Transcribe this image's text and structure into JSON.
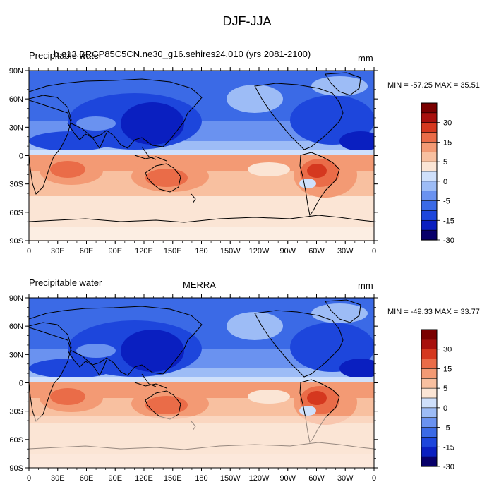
{
  "figure": {
    "title": "DJF-JJA"
  },
  "legend": {
    "colors": [
      "#08006a",
      "#0a1fc0",
      "#1d46dc",
      "#3b6ae6",
      "#6a92f0",
      "#9dbcf6",
      "#cfe0fb",
      "#fbe5d5",
      "#f8c0a0",
      "#f39a74",
      "#ea6c48",
      "#d5381f",
      "#a8100d",
      "#7a0000"
    ],
    "tick_labels": [
      "30",
      "15",
      "5",
      "0",
      "-5",
      "-15",
      "-30"
    ]
  },
  "map_axes": {
    "lat_labels": [
      "90N",
      "60N",
      "30N",
      "0",
      "30S",
      "60S",
      "90S"
    ],
    "lon_labels": [
      "0",
      "30E",
      "60E",
      "90E",
      "120E",
      "150E",
      "180",
      "150W",
      "120W",
      "90W",
      "60W",
      "30W",
      "0"
    ]
  },
  "panels": [
    {
      "left_title": "Precipitable water",
      "center_title": "b.e13.BRCP85C5CN.ne30_g16.sehires24.010 (yrs 2081-2100)",
      "units": "mm",
      "stats": "MIN = -57.25 MAX =  35.51"
    },
    {
      "left_title": "Precipitable water",
      "center_title": "MERRA",
      "units": "mm",
      "stats": "MIN = -49.33 MAX =  33.77"
    }
  ]
}
